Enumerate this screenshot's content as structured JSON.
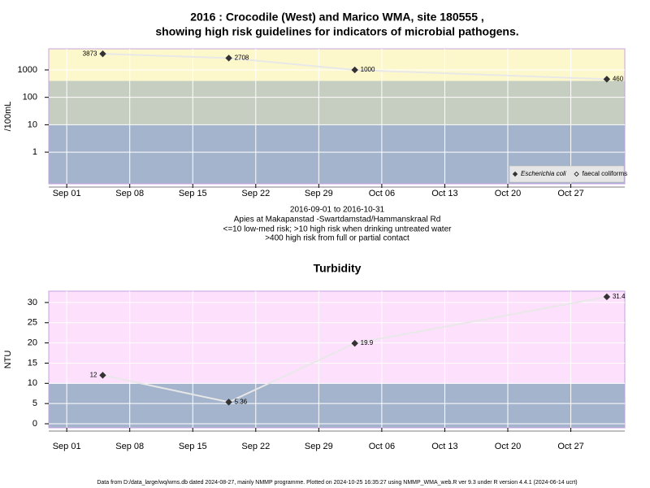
{
  "chart_data": [
    {
      "type": "line",
      "title": [
        "2016 : Crocodile (West) and Marico WMA, site 180555 ,",
        "showing high risk guidelines for indicators of microbial pathogens."
      ],
      "caption": [
        "2016-09-01 to 2016-10-31",
        "Apies at Makapanstad -Swartdamstad/Hammanskraal Rd",
        "<=10 low-med risk; >10 high risk when drinking untreated water",
        ">400 high risk from full or partial contact"
      ],
      "y_label": "/100mL",
      "log_y": true,
      "xlim": [
        "Aug 30",
        "Nov 02"
      ],
      "xticks": [
        "Sep 01",
        "Sep 08",
        "Sep 15",
        "Sep 22",
        "Sep 29",
        "Oct 06",
        "Oct 13",
        "Oct 20",
        "Oct 27"
      ],
      "ylim": [
        0.07,
        5900
      ],
      "yticks": [
        1,
        10,
        100,
        1000
      ],
      "bands": [
        10,
        400
      ],
      "band_colors": [
        "#a3b4cc",
        "#c5cec0",
        "#fdf8cc"
      ],
      "grid": true,
      "legend": "bottom-right",
      "x": [
        "Sep 05",
        "Sep 19",
        "Oct 03",
        "Oct 31"
      ],
      "series": [
        {
          "name": "Escherichia coli",
          "marker": "filled",
          "color": "#333333",
          "values": [
            3873,
            2708,
            1000,
            460
          ]
        },
        {
          "name": "faecal coliforms",
          "marker": "open",
          "color": "#333333",
          "values": [
            null,
            null,
            null,
            null
          ]
        }
      ]
    },
    {
      "type": "line",
      "title": [
        "Turbidity"
      ],
      "y_label": "NTU",
      "log_y": false,
      "xlim": [
        "Aug 30",
        "Nov 02"
      ],
      "xticks": [
        "Sep 01",
        "Sep 08",
        "Sep 15",
        "Sep 22",
        "Sep 29",
        "Oct 06",
        "Oct 13",
        "Oct 20",
        "Oct 27"
      ],
      "ylim": [
        -1,
        32.8
      ],
      "yticks": [
        0,
        5,
        10,
        15,
        20,
        25,
        30
      ],
      "bands": [
        10
      ],
      "band_colors": [
        "#a3b4cc",
        "#fde0fb"
      ],
      "grid": true,
      "x": [
        "Sep 05",
        "Sep 19",
        "Oct 03",
        "Oct 31"
      ],
      "series": [
        {
          "name": "Turbidity",
          "marker": "filled",
          "color": "#333333",
          "values": [
            12,
            5.36,
            19.9,
            31.4
          ]
        }
      ]
    }
  ],
  "footer": "Data from D:/data_large/wq/wms.db dated 2024-08-27, mainly NMMP programme. Plotted on 2024-10-25 16:35:27 using NMMP_WMA_web.R ver 9.3 under R version 4.4.1 (2024-06-14 ucrt)"
}
